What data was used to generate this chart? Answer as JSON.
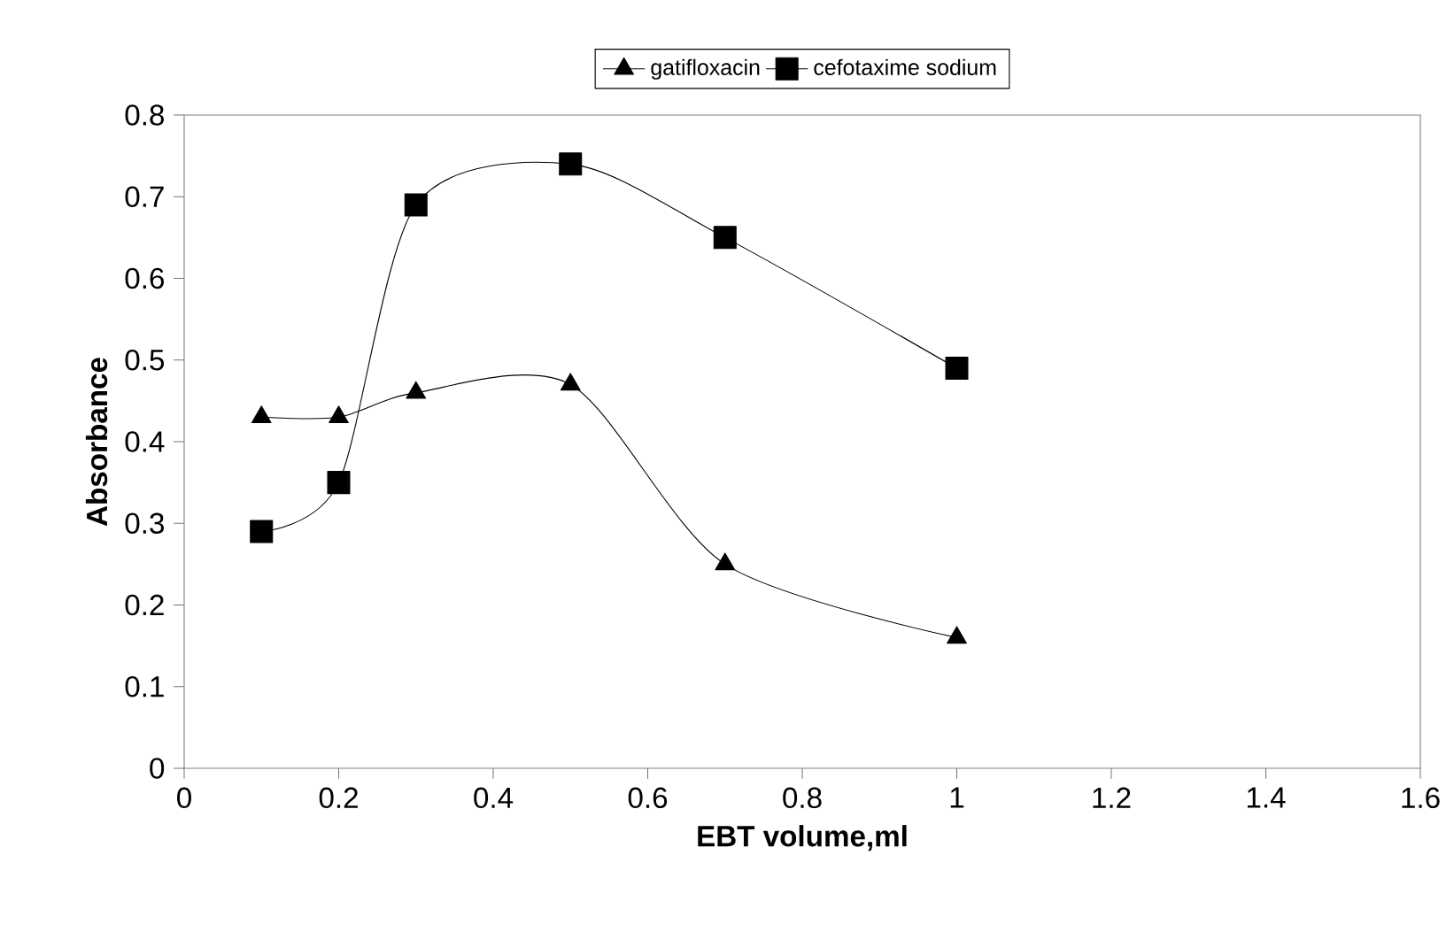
{
  "chart_data": {
    "type": "line",
    "xlabel": "EBT volume,ml",
    "ylabel": "Absorbance",
    "x": [
      0.1,
      0.2,
      0.3,
      0.5,
      0.7,
      1
    ],
    "series": [
      {
        "name": "gatifloxacin",
        "color": "#000000",
        "marker": "triangle",
        "values": [
          0.43,
          0.43,
          0.46,
          0.47,
          0.25,
          0.16
        ]
      },
      {
        "name": "cefotaxime sodium",
        "color": "#000000",
        "marker": "square",
        "values": [
          0.29,
          0.35,
          0.69,
          0.74,
          0.65,
          0.49
        ]
      }
    ],
    "xlim": [
      0,
      1.6
    ],
    "xticks": [
      0,
      0.2,
      0.4,
      0.6,
      0.8,
      1,
      1.2,
      1.4,
      1.6
    ],
    "ylim": [
      0,
      0.8
    ],
    "yticks": [
      0,
      0.1,
      0.2,
      0.3,
      0.4,
      0.5,
      0.6,
      0.7,
      0.8
    ],
    "legend": "top",
    "grid": false
  }
}
